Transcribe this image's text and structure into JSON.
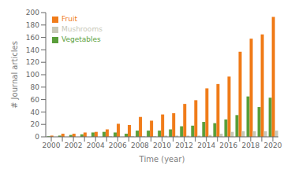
{
  "chart_data": {
    "type": "bar",
    "categories": [
      "2000",
      null,
      "2002",
      null,
      "2004",
      null,
      "2006",
      null,
      "2008",
      null,
      "2010",
      null,
      "2012",
      null,
      "2014",
      null,
      "2016",
      null,
      "2018",
      null,
      "2020"
    ],
    "series": [
      {
        "name": "Vegetables",
        "color": "#5a9e3a",
        "values": [
          1,
          2,
          3,
          4,
          7,
          8,
          7,
          5,
          10,
          10,
          10,
          12,
          17,
          18,
          24,
          22,
          28,
          35,
          65,
          48,
          63
        ]
      },
      {
        "name": "Fruit",
        "color": "#f07c1a",
        "values": [
          2,
          5,
          5,
          7,
          8,
          12,
          21,
          19,
          32,
          26,
          36,
          38,
          53,
          59,
          78,
          85,
          97,
          137,
          158,
          165,
          193
        ]
      },
      {
        "name": "Mushrooms",
        "color": "#c8c8b8",
        "values": [
          0,
          0,
          0,
          0,
          0,
          1,
          0,
          1,
          1,
          1,
          2,
          2,
          2,
          2,
          3,
          5,
          8,
          9,
          9,
          9,
          10
        ]
      }
    ],
    "xlabel": "Time (year)",
    "ylabel": "# Journal articles",
    "ylim": [
      0,
      200
    ],
    "yticks": [
      0,
      20,
      40,
      60,
      80,
      100,
      120,
      140,
      160,
      180,
      200
    ],
    "grid": false,
    "legend": "upper left"
  }
}
